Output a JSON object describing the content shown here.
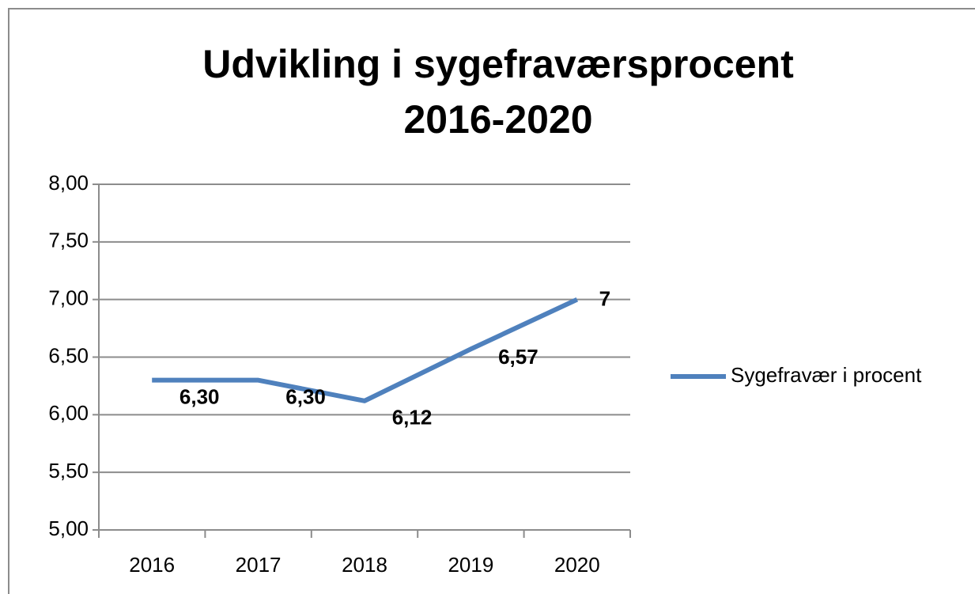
{
  "chart_data": {
    "type": "line",
    "title": "Udvikling i sygefraværsprocent 2016-2020",
    "categories": [
      "2016",
      "2017",
      "2018",
      "2019",
      "2020"
    ],
    "series": [
      {
        "name": "Sygefravær i procent",
        "color": "#4f81bd",
        "values": [
          6.3,
          6.3,
          6.12,
          6.57,
          7
        ],
        "value_labels": [
          "6,30",
          "6,30",
          "6,12",
          "6,57",
          "7"
        ]
      }
    ],
    "ylim": [
      5,
      8
    ],
    "yticks": [
      {
        "value": 5,
        "label": "5,00"
      },
      {
        "value": 5.5,
        "label": "5,50"
      },
      {
        "value": 6,
        "label": "6,00"
      },
      {
        "value": 6.5,
        "label": "6,50"
      },
      {
        "value": 7,
        "label": "7,00"
      },
      {
        "value": 7.5,
        "label": "7,50"
      },
      {
        "value": 8,
        "label": "8,00"
      }
    ],
    "grid": true,
    "legend": "right"
  }
}
